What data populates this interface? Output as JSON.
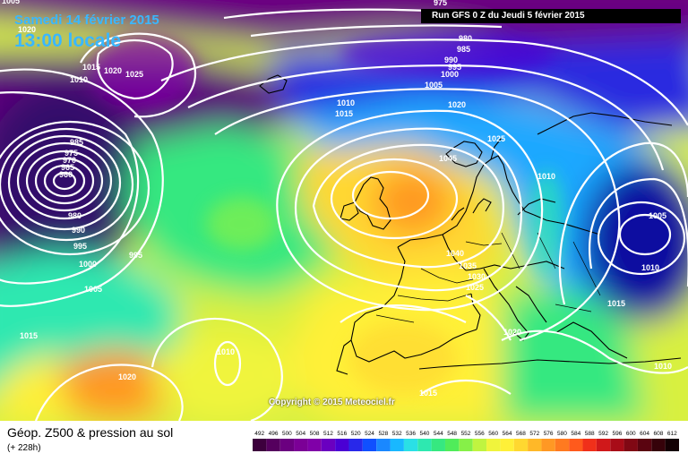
{
  "header": {
    "date_label": "Samedi 14 février 2015",
    "time_label": "13:00 locale",
    "run_label": "Run GFS 0 Z du Jeudi 5 février 2015"
  },
  "copyright": "Copyright © 2015 Meteociel.fr",
  "footer": {
    "variable_title": "Géop. Z500 & pression au sol",
    "forecast_hour": "(+ 228h)"
  },
  "legend": {
    "values": [
      "492",
      "496",
      "500",
      "504",
      "508",
      "512",
      "516",
      "520",
      "524",
      "528",
      "532",
      "536",
      "540",
      "544",
      "548",
      "552",
      "556",
      "560",
      "564",
      "568",
      "572",
      "576",
      "580",
      "584",
      "588",
      "592",
      "596",
      "600",
      "604",
      "608",
      "612"
    ],
    "colors": [
      "#3d003d",
      "#55005e",
      "#6b0080",
      "#7b0096",
      "#8000a8",
      "#6a00c0",
      "#4a00d4",
      "#2828ea",
      "#1050ff",
      "#1a88ff",
      "#19b8ff",
      "#2ae0e6",
      "#2ee8b0",
      "#36e880",
      "#50ec5a",
      "#86f048",
      "#c0f440",
      "#f0f43c",
      "#fff038",
      "#ffd830",
      "#ffb828",
      "#ff9824",
      "#ff7a20",
      "#ff5a1c",
      "#f0301a",
      "#d0181a",
      "#a80c18",
      "#800814",
      "#5a0410",
      "#36020a",
      "#140004"
    ]
  },
  "isobars": {
    "labels": [
      "975",
      "980",
      "985",
      "990",
      "995",
      "1000",
      "1005",
      "1010",
      "1015",
      "1020",
      "1025",
      "1045",
      "1040",
      "1035",
      "1030",
      "1025",
      "1020",
      "1015",
      "1010",
      "1005",
      "1010",
      "1015",
      "985",
      "975",
      "970",
      "965",
      "960",
      "980",
      "990",
      "995",
      "1000",
      "1005",
      "995",
      "1010",
      "1015",
      "1020",
      "1020",
      "1005",
      "1010",
      "1015",
      "1010",
      "1025",
      "1020"
    ]
  }
}
